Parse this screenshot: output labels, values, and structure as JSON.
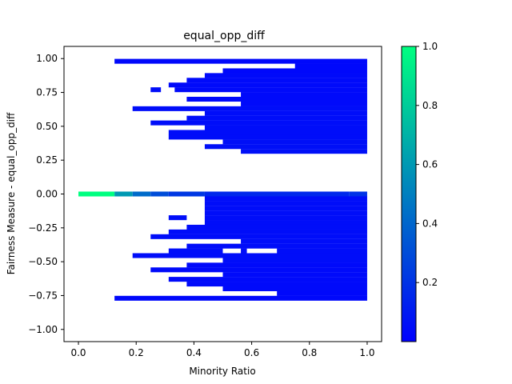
{
  "chart_data": {
    "type": "heatmap",
    "title": "equal_opp_diff",
    "xlabel": "Minority Ratio",
    "ylabel": "Fairness Measure - equal_opp_diff",
    "xlim": [
      -0.05,
      1.05
    ],
    "ylim": [
      -1.09,
      1.09
    ],
    "x_ticks": [
      0.0,
      0.2,
      0.4,
      0.6,
      0.8,
      1.0
    ],
    "x_tick_labels": [
      "0.0",
      "0.2",
      "0.4",
      "0.6",
      "0.8",
      "1.0"
    ],
    "y_ticks": [
      -1.0,
      -0.75,
      -0.5,
      -0.25,
      0.0,
      0.25,
      0.5,
      0.75,
      1.0
    ],
    "y_tick_labels": [
      "−1.00",
      "−0.75",
      "−0.50",
      "−0.25",
      "0.00",
      "0.25",
      "0.50",
      "0.75",
      "1.00"
    ],
    "colorbar": {
      "min": 0.0,
      "max": 1.0,
      "ticks": [
        0.2,
        0.4,
        0.6,
        0.8,
        1.0
      ],
      "tick_labels": [
        "0.2",
        "0.4",
        "0.6",
        "0.8",
        "1.0"
      ],
      "colormap": "winter",
      "low_color": "#0000ff",
      "high_color": "#00ff80"
    },
    "x_right": 1.0,
    "row_height": 0.0357,
    "grid": false,
    "rows": [
      {
        "y": 0.98,
        "segments": [
          {
            "x0": 0.125,
            "x1": 1.0,
            "v": 0.03
          }
        ]
      },
      {
        "y": 0.945,
        "segments": [
          {
            "x0": 0.75,
            "x1": 1.0,
            "v": 0.03
          }
        ]
      },
      {
        "y": 0.91,
        "segments": [
          {
            "x0": 0.5,
            "x1": 1.0,
            "v": 0.03
          }
        ]
      },
      {
        "y": 0.875,
        "segments": [
          {
            "x0": 0.4375,
            "x1": 1.0,
            "v": 0.04
          }
        ]
      },
      {
        "y": 0.84,
        "segments": [
          {
            "x0": 0.375,
            "x1": 1.0,
            "v": 0.04
          }
        ]
      },
      {
        "y": 0.805,
        "segments": [
          {
            "x0": 0.3125,
            "x1": 1.0,
            "v": 0.04
          }
        ]
      },
      {
        "y": 0.77,
        "segments": [
          {
            "x0": 0.25,
            "x1": 0.2857,
            "v": 0.05
          },
          {
            "x0": 0.3333,
            "x1": 1.0,
            "v": 0.04
          }
        ]
      },
      {
        "y": 0.735,
        "segments": [
          {
            "x0": 0.5625,
            "x1": 1.0,
            "v": 0.04
          }
        ]
      },
      {
        "y": 0.7,
        "segments": [
          {
            "x0": 0.375,
            "x1": 1.0,
            "v": 0.04
          }
        ]
      },
      {
        "y": 0.665,
        "segments": [
          {
            "x0": 0.5625,
            "x1": 1.0,
            "v": 0.04
          }
        ]
      },
      {
        "y": 0.63,
        "segments": [
          {
            "x0": 0.1875,
            "x1": 1.0,
            "v": 0.05
          }
        ]
      },
      {
        "y": 0.595,
        "segments": [
          {
            "x0": 0.4375,
            "x1": 1.0,
            "v": 0.05
          }
        ]
      },
      {
        "y": 0.56,
        "segments": [
          {
            "x0": 0.375,
            "x1": 1.0,
            "v": 0.05
          }
        ]
      },
      {
        "y": 0.525,
        "segments": [
          {
            "x0": 0.25,
            "x1": 1.0,
            "v": 0.05
          }
        ]
      },
      {
        "y": 0.49,
        "segments": [
          {
            "x0": 0.4375,
            "x1": 1.0,
            "v": 0.05
          }
        ]
      },
      {
        "y": 0.455,
        "segments": [
          {
            "x0": 0.3125,
            "x1": 1.0,
            "v": 0.05
          }
        ]
      },
      {
        "y": 0.42,
        "segments": [
          {
            "x0": 0.3125,
            "x1": 1.0,
            "v": 0.05
          }
        ]
      },
      {
        "y": 0.385,
        "segments": [
          {
            "x0": 0.5,
            "x1": 1.0,
            "v": 0.06
          }
        ]
      },
      {
        "y": 0.35,
        "segments": [
          {
            "x0": 0.4375,
            "x1": 1.0,
            "v": 0.06
          }
        ]
      },
      {
        "y": 0.315,
        "segments": [
          {
            "x0": 0.5625,
            "x1": 1.0,
            "v": 0.06
          }
        ]
      },
      {
        "y": 0.0,
        "segments": [
          {
            "x0": 0.0,
            "x1": 0.125,
            "v": 1.0
          },
          {
            "x0": 0.125,
            "x1": 0.1875,
            "v": 0.6
          },
          {
            "x0": 0.1875,
            "x1": 0.25,
            "v": 0.42
          },
          {
            "x0": 0.25,
            "x1": 0.3125,
            "v": 0.3
          },
          {
            "x0": 0.3125,
            "x1": 0.4375,
            "v": 0.22
          },
          {
            "x0": 0.4375,
            "x1": 0.9375,
            "v": 0.16
          },
          {
            "x0": 0.9375,
            "x1": 1.0,
            "v": 0.2
          }
        ]
      },
      {
        "y": -0.035,
        "segments": [
          {
            "x0": 0.4375,
            "x1": 1.0,
            "v": 0.05
          }
        ]
      },
      {
        "y": -0.07,
        "segments": [
          {
            "x0": 0.4375,
            "x1": 1.0,
            "v": 0.05
          }
        ]
      },
      {
        "y": -0.105,
        "segments": [
          {
            "x0": 0.4375,
            "x1": 1.0,
            "v": 0.05
          }
        ]
      },
      {
        "y": -0.14,
        "segments": [
          {
            "x0": 0.4375,
            "x1": 1.0,
            "v": 0.05
          }
        ]
      },
      {
        "y": -0.175,
        "segments": [
          {
            "x0": 0.3125,
            "x1": 0.375,
            "v": 0.05
          },
          {
            "x0": 0.4375,
            "x1": 1.0,
            "v": 0.05
          }
        ]
      },
      {
        "y": -0.21,
        "segments": [
          {
            "x0": 0.4375,
            "x1": 1.0,
            "v": 0.05
          }
        ]
      },
      {
        "y": -0.245,
        "segments": [
          {
            "x0": 0.375,
            "x1": 1.0,
            "v": 0.05
          }
        ]
      },
      {
        "y": -0.28,
        "segments": [
          {
            "x0": 0.3125,
            "x1": 1.0,
            "v": 0.05
          }
        ]
      },
      {
        "y": -0.315,
        "segments": [
          {
            "x0": 0.25,
            "x1": 1.0,
            "v": 0.05
          }
        ]
      },
      {
        "y": -0.35,
        "segments": [
          {
            "x0": 0.5625,
            "x1": 1.0,
            "v": 0.05
          }
        ]
      },
      {
        "y": -0.385,
        "segments": [
          {
            "x0": 0.375,
            "x1": 1.0,
            "v": 0.05
          }
        ]
      },
      {
        "y": -0.42,
        "segments": [
          {
            "x0": 0.3125,
            "x1": 0.5,
            "v": 0.05
          },
          {
            "x0": 0.5625,
            "x1": 0.5833,
            "v": 0.05
          },
          {
            "x0": 0.6875,
            "x1": 1.0,
            "v": 0.05
          }
        ]
      },
      {
        "y": -0.455,
        "segments": [
          {
            "x0": 0.1875,
            "x1": 1.0,
            "v": 0.05
          }
        ]
      },
      {
        "y": -0.49,
        "segments": [
          {
            "x0": 0.5,
            "x1": 1.0,
            "v": 0.05
          }
        ]
      },
      {
        "y": -0.525,
        "segments": [
          {
            "x0": 0.375,
            "x1": 1.0,
            "v": 0.04
          }
        ]
      },
      {
        "y": -0.56,
        "segments": [
          {
            "x0": 0.25,
            "x1": 1.0,
            "v": 0.04
          }
        ]
      },
      {
        "y": -0.595,
        "segments": [
          {
            "x0": 0.5,
            "x1": 1.0,
            "v": 0.04
          }
        ]
      },
      {
        "y": -0.63,
        "segments": [
          {
            "x0": 0.3125,
            "x1": 1.0,
            "v": 0.04
          }
        ]
      },
      {
        "y": -0.665,
        "segments": [
          {
            "x0": 0.375,
            "x1": 1.0,
            "v": 0.04
          }
        ]
      },
      {
        "y": -0.7,
        "segments": [
          {
            "x0": 0.5,
            "x1": 1.0,
            "v": 0.04
          }
        ]
      },
      {
        "y": -0.735,
        "segments": [
          {
            "x0": 0.6875,
            "x1": 1.0,
            "v": 0.03
          }
        ]
      },
      {
        "y": -0.77,
        "segments": [
          {
            "x0": 0.125,
            "x1": 1.0,
            "v": 0.03
          }
        ]
      }
    ]
  }
}
